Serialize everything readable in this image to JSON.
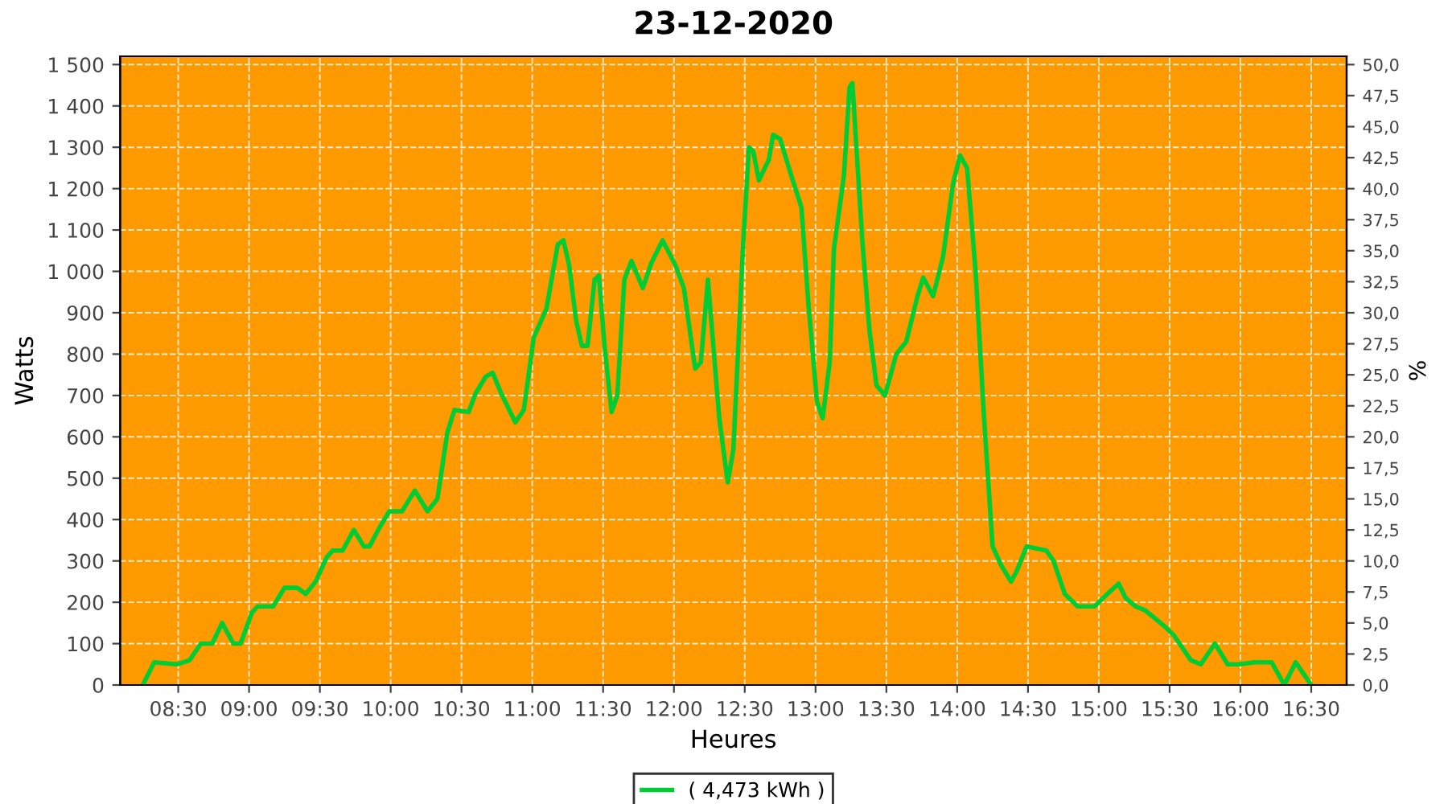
{
  "chart_data": {
    "type": "line",
    "title": "23-12-2020",
    "xlabel": "Heures",
    "ylabel": "Watts",
    "y2label": "%",
    "x": [
      8.25,
      8.33,
      8.49,
      8.58,
      8.66,
      8.74,
      8.81,
      8.89,
      8.94,
      9.02,
      9.06,
      9.17,
      9.25,
      9.34,
      9.4,
      9.47,
      9.55,
      9.59,
      9.66,
      9.74,
      9.81,
      9.85,
      9.92,
      9.99,
      10.08,
      10.17,
      10.26,
      10.33,
      10.4,
      10.45,
      10.55,
      10.6,
      10.67,
      10.72,
      10.78,
      10.88,
      10.94,
      11.01,
      11.1,
      11.18,
      11.22,
      11.26,
      11.31,
      11.35,
      11.39,
      11.44,
      11.47,
      11.51,
      11.56,
      11.6,
      11.65,
      11.7,
      11.78,
      11.84,
      11.92,
      12.01,
      12.07,
      12.15,
      12.19,
      12.24,
      12.32,
      12.38,
      12.42,
      12.49,
      12.53,
      12.56,
      12.6,
      12.67,
      12.7,
      12.75,
      12.83,
      12.9,
      12.95,
      13.01,
      13.05,
      13.1,
      13.13,
      13.2,
      13.24,
      13.26,
      13.33,
      13.38,
      13.43,
      13.49,
      13.57,
      13.64,
      13.72,
      13.76,
      13.83,
      13.9,
      13.97,
      14.02,
      14.07,
      14.13,
      14.19,
      14.25,
      14.31,
      14.38,
      14.42,
      14.49,
      14.63,
      14.68,
      14.76,
      14.85,
      14.97,
      15.06,
      15.14,
      15.19,
      15.26,
      15.33,
      15.4,
      15.47,
      15.53,
      15.65,
      15.72,
      15.82,
      15.91,
      15.99,
      16.1,
      16.22,
      16.31,
      16.39,
      16.44,
      16.5
    ],
    "series": [
      {
        "name": "( 4,473 kWh )",
        "color": "#00cc33",
        "values": [
          0,
          55,
          50,
          60,
          100,
          100,
          150,
          100,
          100,
          175,
          190,
          190,
          235,
          235,
          220,
          250,
          310,
          325,
          325,
          375,
          335,
          335,
          380,
          420,
          420,
          470,
          420,
          450,
          610,
          665,
          660,
          705,
          745,
          755,
          705,
          635,
          665,
          840,
          910,
          1065,
          1075,
          1015,
          880,
          820,
          820,
          980,
          990,
          820,
          660,
          700,
          980,
          1025,
          960,
          1020,
          1075,
          1015,
          960,
          765,
          780,
          980,
          645,
          490,
          570,
          1075,
          1300,
          1290,
          1220,
          1270,
          1330,
          1320,
          1230,
          1155,
          920,
          685,
          645,
          780,
          1055,
          1230,
          1445,
          1455,
          1075,
          860,
          725,
          700,
          800,
          830,
          940,
          985,
          940,
          1035,
          1210,
          1280,
          1250,
          1000,
          645,
          335,
          290,
          250,
          275,
          335,
          325,
          300,
          220,
          190,
          190,
          220,
          245,
          210,
          190,
          180,
          160,
          140,
          120,
          60,
          50,
          100,
          50,
          50,
          55,
          55,
          0,
          55,
          30,
          0
        ]
      }
    ],
    "xlim": [
      8.09,
      16.75
    ],
    "xticks": [
      {
        "value": 8.5,
        "label": "08:30"
      },
      {
        "value": 9,
        "label": "09:00"
      },
      {
        "value": 9.5,
        "label": "09:30"
      },
      {
        "value": 10,
        "label": "10:00"
      },
      {
        "value": 10.5,
        "label": "10:30"
      },
      {
        "value": 11,
        "label": "11:00"
      },
      {
        "value": 11.5,
        "label": "11:30"
      },
      {
        "value": 12,
        "label": "12:00"
      },
      {
        "value": 12.5,
        "label": "12:30"
      },
      {
        "value": 13,
        "label": "13:00"
      },
      {
        "value": 13.5,
        "label": "13:30"
      },
      {
        "value": 14,
        "label": "14:00"
      },
      {
        "value": 14.5,
        "label": "14:30"
      },
      {
        "value": 15,
        "label": "15:00"
      },
      {
        "value": 15.5,
        "label": "15:30"
      },
      {
        "value": 16,
        "label": "16:00"
      },
      {
        "value": 16.5,
        "label": "16:30"
      }
    ],
    "ylim": [
      0,
      1520
    ],
    "yticks": [
      0,
      100,
      200,
      300,
      400,
      500,
      600,
      700,
      800,
      900,
      {
        "value": 1000,
        "label": "1 000"
      },
      {
        "value": 1100,
        "label": "1 100"
      },
      {
        "value": 1200,
        "label": "1 200"
      },
      {
        "value": 1300,
        "label": "1 300"
      },
      {
        "value": 1400,
        "label": "1 400"
      },
      {
        "value": 1500,
        "label": "1 500"
      }
    ],
    "y2lim": [
      0,
      50.67
    ],
    "y2ticks": [
      {
        "value": 0,
        "label": "0,0"
      },
      {
        "value": 2.5,
        "label": "2,5"
      },
      {
        "value": 5,
        "label": "5,0"
      },
      {
        "value": 7.5,
        "label": "7,5"
      },
      {
        "value": 10,
        "label": "10,0"
      },
      {
        "value": 12.5,
        "label": "12,5"
      },
      {
        "value": 15,
        "label": "15,0"
      },
      {
        "value": 17.5,
        "label": "17,5"
      },
      {
        "value": 20,
        "label": "20,0"
      },
      {
        "value": 22.5,
        "label": "22,5"
      },
      {
        "value": 25,
        "label": "25,0"
      },
      {
        "value": 27.5,
        "label": "27,5"
      },
      {
        "value": 30,
        "label": "30,0"
      },
      {
        "value": 32.5,
        "label": "32,5"
      },
      {
        "value": 35,
        "label": "35,0"
      },
      {
        "value": 37.5,
        "label": "37,5"
      },
      {
        "value": 40,
        "label": "40,0"
      },
      {
        "value": 42.5,
        "label": "42,5"
      },
      {
        "value": 45,
        "label": "45,0"
      },
      {
        "value": 47.5,
        "label": "47,5"
      },
      {
        "value": 50,
        "label": "50,0"
      }
    ],
    "grid": true,
    "legend": "bottom",
    "marker": "none",
    "line_style": "solid"
  }
}
